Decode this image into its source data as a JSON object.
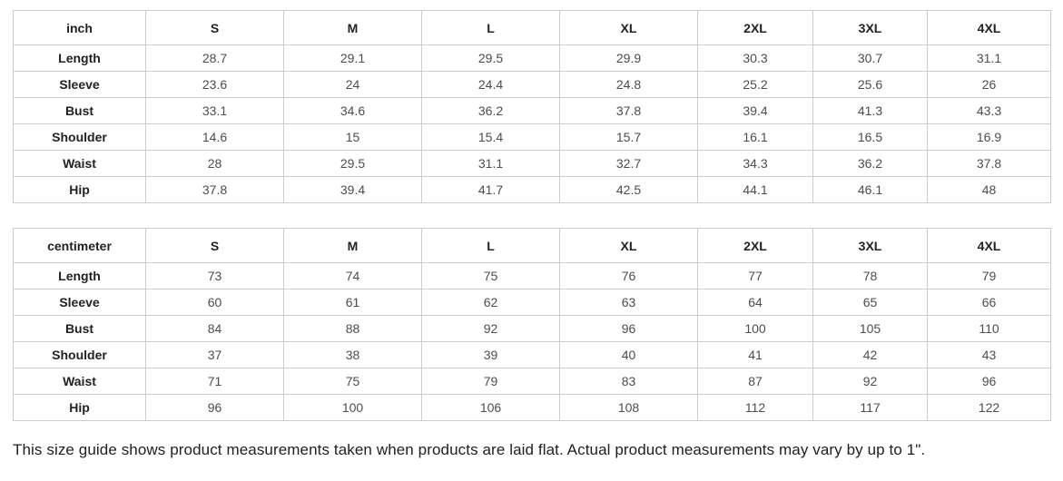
{
  "tables": [
    {
      "unit": "inch",
      "sizes": [
        "S",
        "M",
        "L",
        "XL",
        "2XL",
        "3XL",
        "4XL"
      ],
      "rows": [
        {
          "label": "Length",
          "values": [
            "28.7",
            "29.1",
            "29.5",
            "29.9",
            "30.3",
            "30.7",
            "31.1"
          ]
        },
        {
          "label": "Sleeve",
          "values": [
            "23.6",
            "24",
            "24.4",
            "24.8",
            "25.2",
            "25.6",
            "26"
          ]
        },
        {
          "label": "Bust",
          "values": [
            "33.1",
            "34.6",
            "36.2",
            "37.8",
            "39.4",
            "41.3",
            "43.3"
          ]
        },
        {
          "label": "Shoulder",
          "values": [
            "14.6",
            "15",
            "15.4",
            "15.7",
            "16.1",
            "16.5",
            "16.9"
          ]
        },
        {
          "label": "Waist",
          "values": [
            "28",
            "29.5",
            "31.1",
            "32.7",
            "34.3",
            "36.2",
            "37.8"
          ]
        },
        {
          "label": "Hip",
          "values": [
            "37.8",
            "39.4",
            "41.7",
            "42.5",
            "44.1",
            "46.1",
            "48"
          ]
        }
      ]
    },
    {
      "unit": "centimeter",
      "sizes": [
        "S",
        "M",
        "L",
        "XL",
        "2XL",
        "3XL",
        "4XL"
      ],
      "rows": [
        {
          "label": "Length",
          "values": [
            "73",
            "74",
            "75",
            "76",
            "77",
            "78",
            "79"
          ]
        },
        {
          "label": "Sleeve",
          "values": [
            "60",
            "61",
            "62",
            "63",
            "64",
            "65",
            "66"
          ]
        },
        {
          "label": "Bust",
          "values": [
            "84",
            "88",
            "92",
            "96",
            "100",
            "105",
            "110"
          ]
        },
        {
          "label": "Shoulder",
          "values": [
            "37",
            "38",
            "39",
            "40",
            "41",
            "42",
            "43"
          ]
        },
        {
          "label": "Waist",
          "values": [
            "71",
            "75",
            "79",
            "83",
            "87",
            "92",
            "96"
          ]
        },
        {
          "label": "Hip",
          "values": [
            "96",
            "100",
            "106",
            "108",
            "112",
            "117",
            "122"
          ]
        }
      ]
    }
  ],
  "note": "This size guide shows product measurements taken when products are laid flat. Actual product measurements may vary by up to 1\"."
}
